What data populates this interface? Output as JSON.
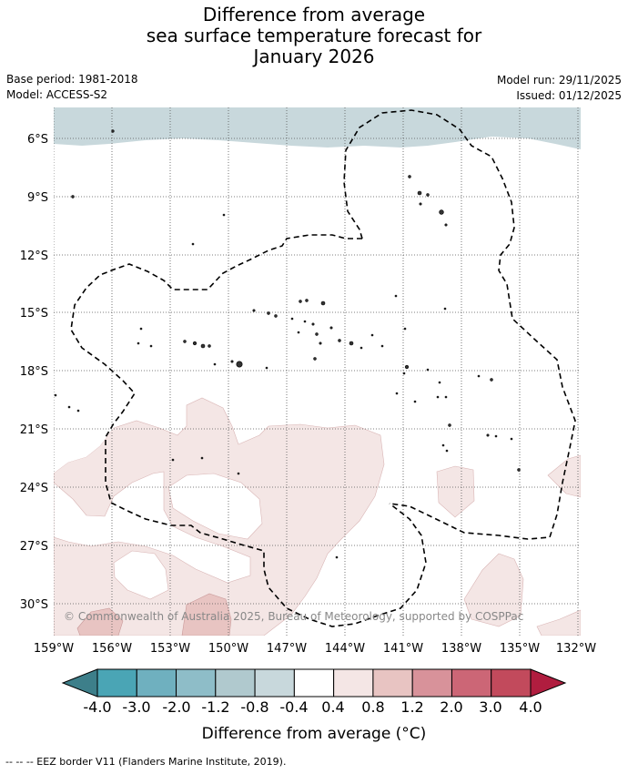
{
  "title": {
    "line1": "Difference from average",
    "line2": "sea surface temperature forecast for",
    "line3": "January 2026"
  },
  "meta": {
    "base_period": "Base period: 1981-2018",
    "model": "Model: ACCESS-S2",
    "model_run": "Model run: 29/11/2025",
    "issued": "Issued: 01/12/2025"
  },
  "map": {
    "copyright": "© Commonwealth of Australia 2025, Bureau of Meteorology, supported by COSPPac",
    "lat_labels": [
      "6°S",
      "9°S",
      "12°S",
      "15°S",
      "18°S",
      "21°S",
      "24°S",
      "27°S",
      "30°S"
    ],
    "lon_labels": [
      "159°W",
      "156°W",
      "153°W",
      "150°W",
      "147°W",
      "144°W",
      "141°W",
      "138°W",
      "135°W",
      "132°W"
    ],
    "grid": true
  },
  "legend": {
    "title": "Difference from average (°C)",
    "tick_labels": [
      "-4.0",
      "-3.0",
      "-2.0",
      "-1.2",
      "-0.8",
      "-0.4",
      "0.4",
      "0.8",
      "1.2",
      "2.0",
      "3.0",
      "4.0"
    ],
    "colors": [
      "#3d7f8a",
      "#4aa5b5",
      "#6fb0bf",
      "#8ebdc8",
      "#b0c9ce",
      "#c8d8dc",
      "#ffffff",
      "#f4e6e5",
      "#e8c4c2",
      "#d8929a",
      "#cc6676",
      "#c24a5c",
      "#b01d3f"
    ],
    "footnote": "-- -- -- EEZ border V11 (Flanders Marine Institute, 2019)."
  }
}
